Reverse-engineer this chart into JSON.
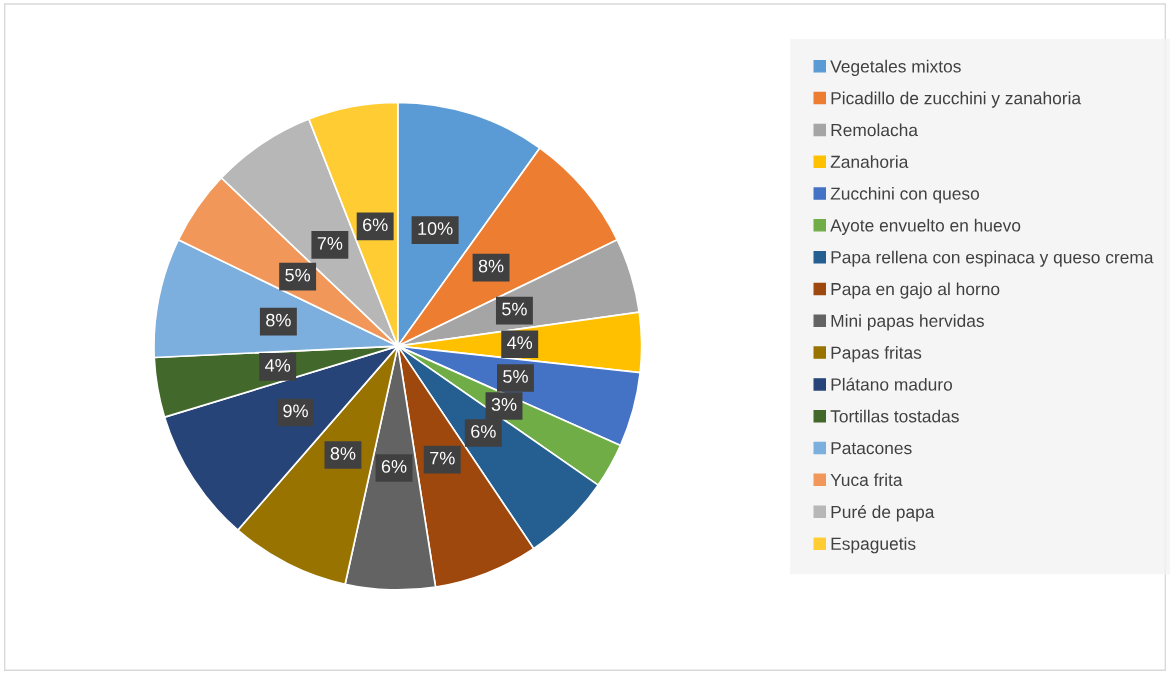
{
  "chart_data": {
    "type": "pie",
    "categories": [
      "Vegetales mixtos",
      "Picadillo de zucchini y zanahoria",
      "Remolacha",
      "Zanahoria",
      "Zucchini con queso",
      "Ayote envuelto en huevo",
      "Papa rellena con espinaca y queso crema",
      "Papa en gajo al horno",
      "Mini papas hervidas",
      "Papas fritas",
      "Plátano maduro",
      "Tortillas tostadas",
      "Patacones",
      "Yuca frita",
      "Puré de papa",
      "Espaguetis"
    ],
    "values": [
      10,
      8,
      5,
      4,
      5,
      3,
      6,
      7,
      6,
      8,
      9,
      4,
      8,
      5,
      7,
      6
    ],
    "value_labels": [
      "10%",
      "8%",
      "5%",
      "4%",
      "5%",
      "3%",
      "6%",
      "7%",
      "6%",
      "8%",
      "9%",
      "4%",
      "8%",
      "5%",
      "7%",
      "6%"
    ],
    "colors": [
      "#5b9bd5",
      "#ed7d31",
      "#a5a5a5",
      "#ffc000",
      "#4472c4",
      "#70ad47",
      "#255e91",
      "#9e480e",
      "#636363",
      "#997300",
      "#264478",
      "#43682b",
      "#7cafdd",
      "#f1975a",
      "#b7b7b7",
      "#ffcd33"
    ],
    "legend": "right"
  }
}
